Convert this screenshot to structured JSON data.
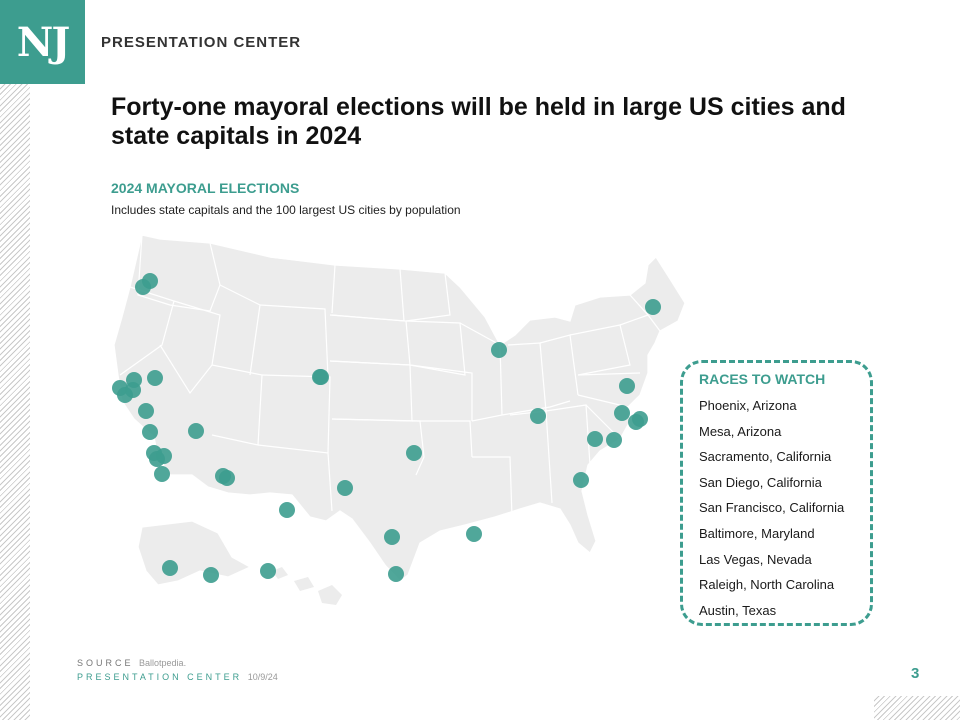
{
  "header": {
    "logo": "NJ",
    "brand": "PRESENTATION CENTER"
  },
  "title": "Forty-one mayoral elections will be held in large US cities and state capitals in 2024",
  "subhead": "2024 MAYORAL ELECTIONS",
  "subtext": "Includes state capitals and the 100 largest US cities by population",
  "map": {
    "icon": "us-map",
    "fill_color": "#ececec",
    "border_color": "#ffffff",
    "marker_color": "#3d9d8f",
    "marker_count": 41
  },
  "races": {
    "title": "RACES TO WATCH",
    "items": [
      "Phoenix, Arizona",
      "Mesa, Arizona",
      "Sacramento, California",
      "San Diego, California",
      "San Francisco, California",
      "Baltimore, Maryland",
      "Las Vegas, Nevada",
      "Raleigh, North Carolina",
      "Austin, Texas"
    ]
  },
  "footer": {
    "source_label": "SOURCE",
    "source_value": "Ballotpedia.",
    "brand": "PRESENTATION CENTER",
    "date": "10/9/24",
    "page_number": "3"
  },
  "colors": {
    "accent": "#3d9d8f"
  }
}
